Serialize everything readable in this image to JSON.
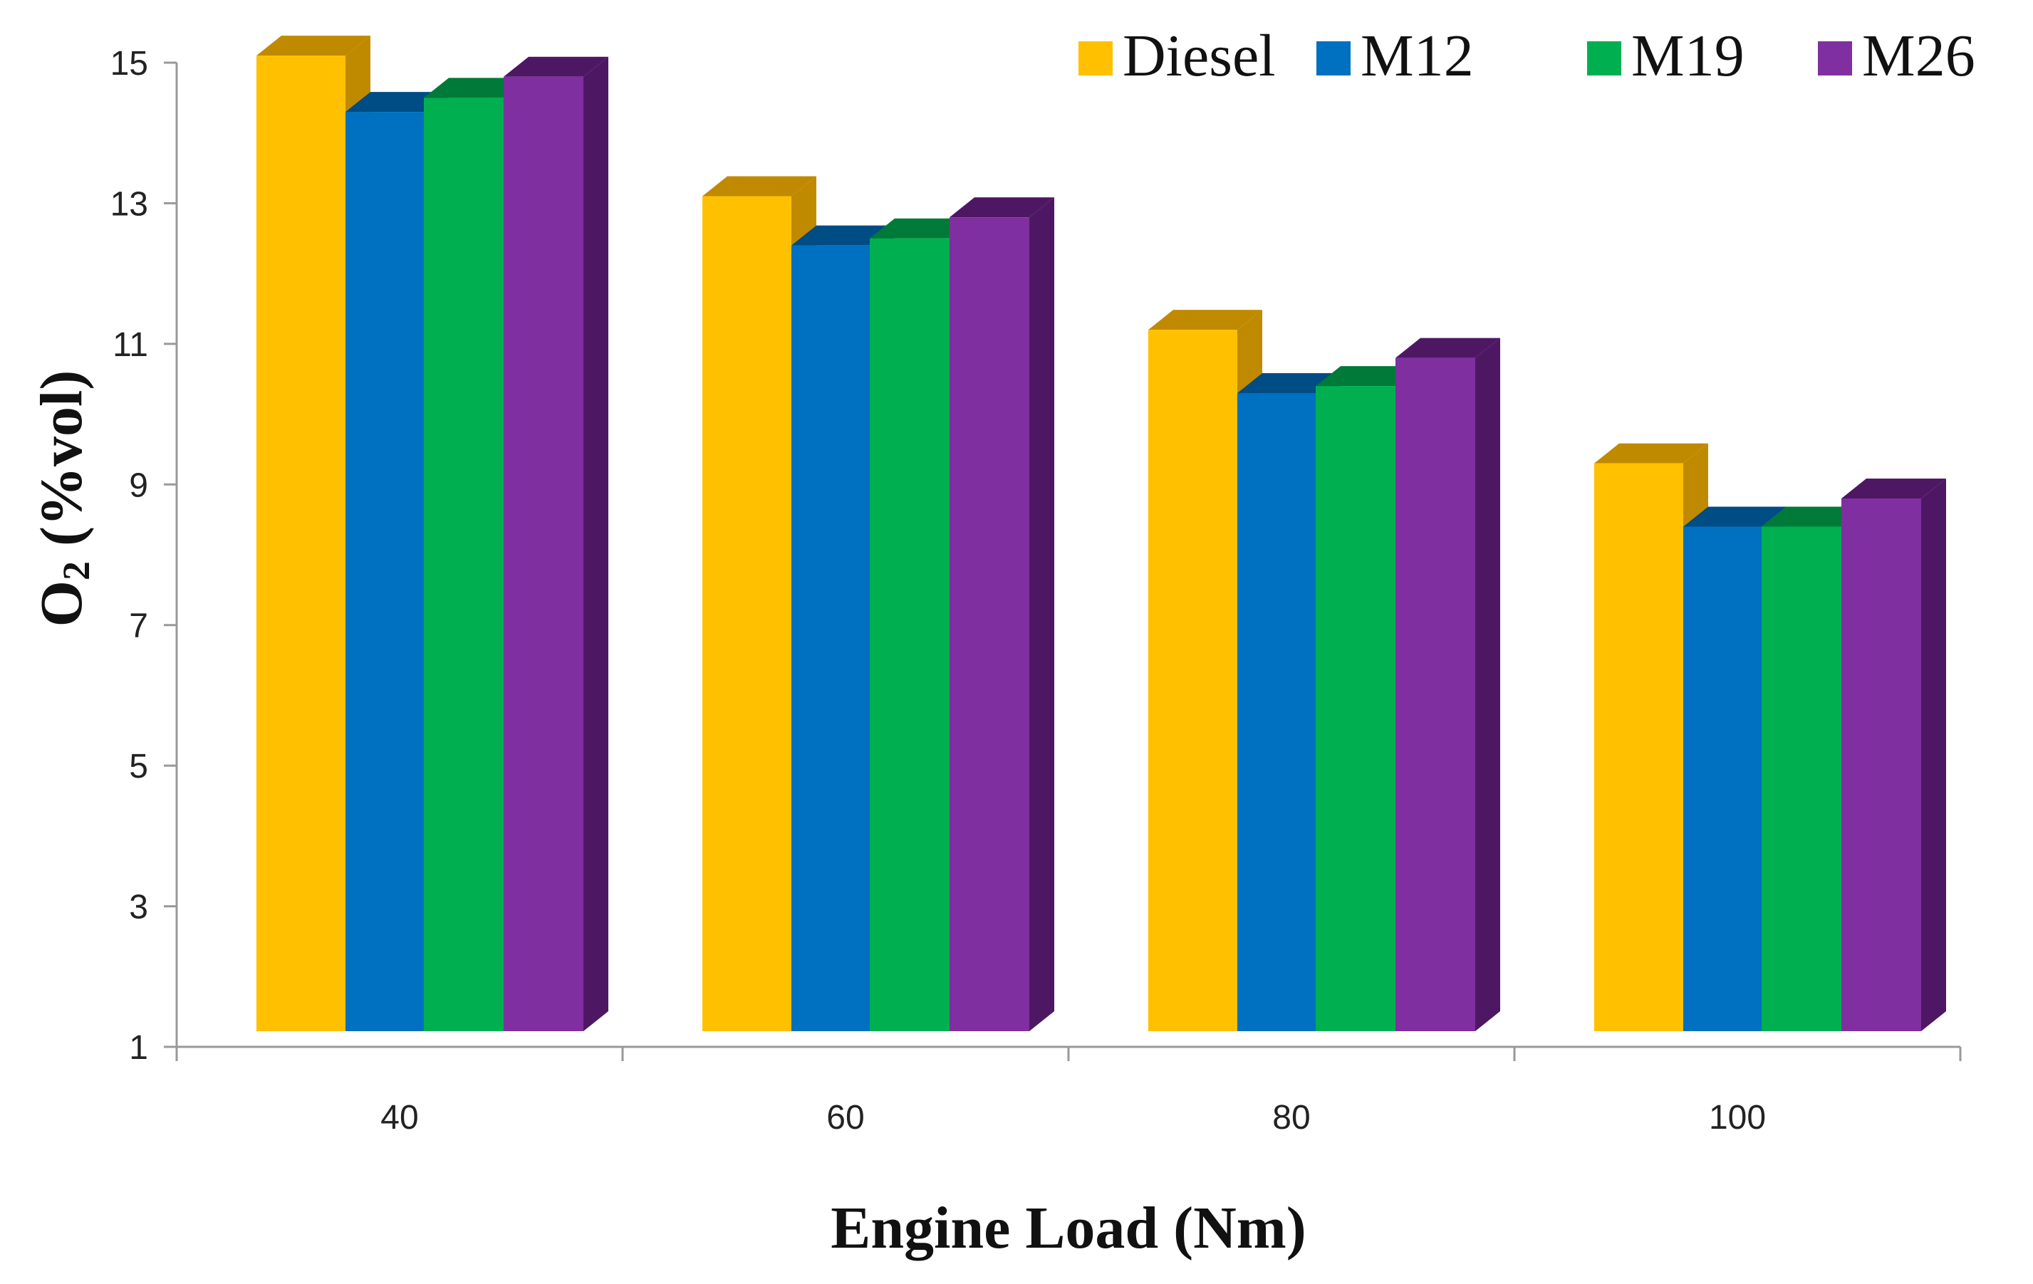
{
  "chart_data": {
    "type": "bar",
    "style": "3d-clustered",
    "categories": [
      "40",
      "60",
      "80",
      "100"
    ],
    "series": [
      {
        "name": "Diesel",
        "values": [
          15.1,
          13.1,
          11.2,
          9.3
        ],
        "color": "#FFC000",
        "side_color": "#C08A00"
      },
      {
        "name": "M12",
        "values": [
          14.3,
          12.4,
          10.3,
          8.4
        ],
        "color": "#0070C0",
        "side_color": "#004C84"
      },
      {
        "name": "M19",
        "values": [
          14.5,
          12.5,
          10.4,
          8.4
        ],
        "color": "#00B050",
        "side_color": "#007A38"
      },
      {
        "name": "M26",
        "values": [
          14.8,
          12.8,
          10.8,
          8.8
        ],
        "color": "#7F2FA0",
        "side_color": "#4E1764"
      }
    ],
    "xlabel": "Engine Load (Nm)",
    "ylabel_main": "O",
    "ylabel_subscript": "2",
    "ylabel_rest": " (%vol)",
    "ylim": [
      1,
      15
    ],
    "yticks": [
      1,
      3,
      5,
      7,
      9,
      11,
      13,
      15
    ],
    "legend_position": "top-right",
    "grid": false
  }
}
